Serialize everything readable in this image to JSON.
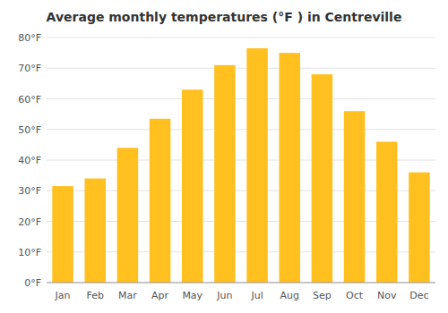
{
  "chart_data": {
    "type": "bar",
    "title": "Average monthly temperatures (°F ) in Centreville",
    "categories": [
      "Jan",
      "Feb",
      "Mar",
      "Apr",
      "May",
      "Jun",
      "Jul",
      "Aug",
      "Sep",
      "Oct",
      "Nov",
      "Dec"
    ],
    "values": [
      31.5,
      34.0,
      44.0,
      53.5,
      63.0,
      71.0,
      76.5,
      75.0,
      68.0,
      56.0,
      46.0,
      36.0
    ],
    "color": "#FFC020",
    "ylim": [
      0,
      80
    ],
    "yticks": [
      {
        "value": 0,
        "label": "0°F"
      },
      {
        "value": 10,
        "label": "10°F"
      },
      {
        "value": 20,
        "label": "20°F"
      },
      {
        "value": 30,
        "label": "30°F"
      },
      {
        "value": 40,
        "label": "40°F"
      },
      {
        "value": 50,
        "label": "50°F"
      },
      {
        "value": 60,
        "label": "60°F"
      },
      {
        "value": 70,
        "label": "70°F"
      },
      {
        "value": 80,
        "label": "80°F"
      }
    ],
    "grid": true
  }
}
